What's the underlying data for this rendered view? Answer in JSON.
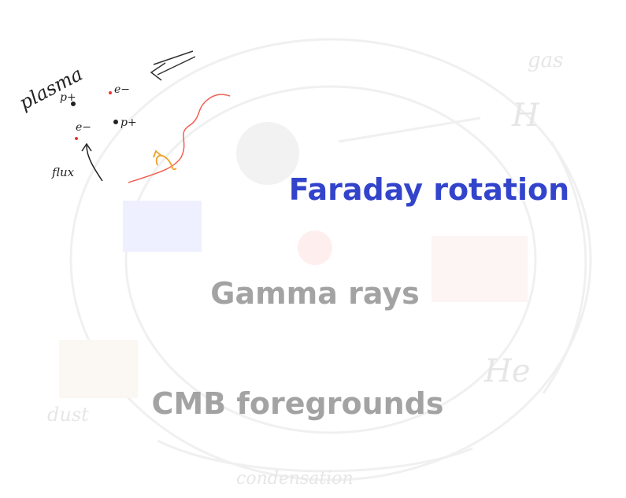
{
  "sketch": {
    "plasma": "plasma",
    "proton": "p+",
    "electron": "e−",
    "flux": "flux"
  },
  "background_labels": [
    "gas",
    "H",
    "He",
    "dust",
    "condensation"
  ],
  "topics": [
    "Faraday rotation",
    "Gamma rays",
    "CMB foregrounds"
  ]
}
